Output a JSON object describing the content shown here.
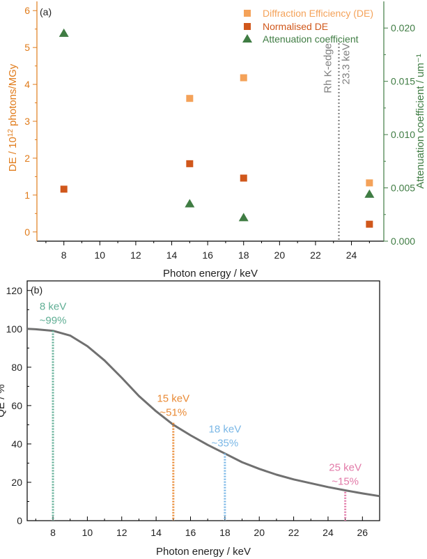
{
  "chart_data": [
    {
      "panel_label": "(a)",
      "type": "scatter",
      "xlabel": "Photon energy / keV",
      "ylabel_left_parts": [
        "DE / 10",
        "12",
        " photons/MGy"
      ],
      "ylabel_right": "Attenuation coefficient / um⁻¹",
      "xlim": [
        6.5,
        25.8
      ],
      "ylim_left": [
        -0.25,
        6.25
      ],
      "ylim_right": [
        0,
        0.0225
      ],
      "x_ticks": [
        8,
        10,
        12,
        14,
        16,
        18,
        20,
        22,
        24
      ],
      "x_tick_labels": [
        "8",
        "10",
        "12",
        "14",
        "16",
        "18",
        "20",
        "22",
        "24"
      ],
      "y_left_ticks": [
        0,
        1,
        2,
        3,
        4,
        5,
        6
      ],
      "y_left_tick_labels": [
        "0",
        "1",
        "2",
        "3",
        "4",
        "5",
        "6"
      ],
      "y_right_ticks": [
        0,
        0.005,
        0.01,
        0.015,
        0.02
      ],
      "y_right_tick_labels": [
        "0.000",
        "0.005",
        "0.010",
        "0.015",
        "0.020"
      ],
      "series": [
        {
          "name": "Diffraction Efficiency (DE)",
          "marker": "square",
          "color": "#f4a259",
          "axis": "left",
          "x": [
            15,
            18,
            25
          ],
          "y": [
            3.62,
            4.18,
            1.33
          ]
        },
        {
          "name": "Normalised DE",
          "marker": "square",
          "color": "#d0571b",
          "axis": "left",
          "x": [
            8,
            15,
            18,
            25
          ],
          "y": [
            1.16,
            1.85,
            1.46,
            0.21
          ]
        },
        {
          "name": "Attenuation coefficient",
          "marker": "triangle",
          "color": "#3f7c43",
          "axis": "right",
          "x": [
            8,
            15,
            18,
            25
          ],
          "y": [
            0.0195,
            0.0035,
            0.0022,
            0.0044
          ]
        }
      ],
      "annotations": [
        {
          "x": 23.3,
          "type": "vline",
          "color": "#808080",
          "lines": [
            "Rh K-edge",
            "23.3 keV"
          ]
        }
      ],
      "colors": {
        "left_axis": "#e07b1a",
        "right_axis": "#3f7c43"
      },
      "legend_position": "top-right"
    },
    {
      "panel_label": "(b)",
      "type": "line",
      "xlabel": "Photon energy / keV",
      "ylabel": "QE / %",
      "xlim": [
        6.5,
        27
      ],
      "ylim": [
        0,
        125
      ],
      "x_ticks": [
        8,
        10,
        12,
        14,
        16,
        18,
        20,
        22,
        24,
        26
      ],
      "x_tick_labels": [
        "8",
        "10",
        "12",
        "14",
        "16",
        "18",
        "20",
        "22",
        "24",
        "26"
      ],
      "y_ticks": [
        0,
        20,
        40,
        60,
        80,
        100,
        120
      ],
      "y_tick_labels": [
        "0",
        "20",
        "40",
        "60",
        "80",
        "100",
        "120"
      ],
      "series": [
        {
          "color": "#707070",
          "x": [
            6.5,
            7,
            8,
            9,
            10,
            11,
            12,
            13,
            14,
            15,
            16,
            17,
            18,
            19,
            20,
            21,
            22,
            23,
            24,
            25,
            26,
            27
          ],
          "y": [
            100,
            99.8,
            99,
            96.5,
            91,
            83.5,
            74.5,
            65,
            57,
            50,
            44.5,
            39.5,
            35,
            30.5,
            27,
            24,
            21.5,
            19.5,
            17.5,
            15.8,
            14.2,
            12.8
          ]
        }
      ],
      "markers": [
        {
          "x": 8,
          "y": 99,
          "color": "#5fae94",
          "lines": [
            "8 keV",
            "~99%"
          ]
        },
        {
          "x": 15,
          "y": 51,
          "color": "#e98a35",
          "lines": [
            "15 keV",
            "~51%"
          ]
        },
        {
          "x": 18,
          "y": 35,
          "color": "#7ab7e6",
          "lines": [
            "18 keV",
            "~35%"
          ]
        },
        {
          "x": 25,
          "y": 15,
          "color": "#e27aa8",
          "lines": [
            "25 keV",
            "~15%"
          ]
        }
      ]
    }
  ]
}
